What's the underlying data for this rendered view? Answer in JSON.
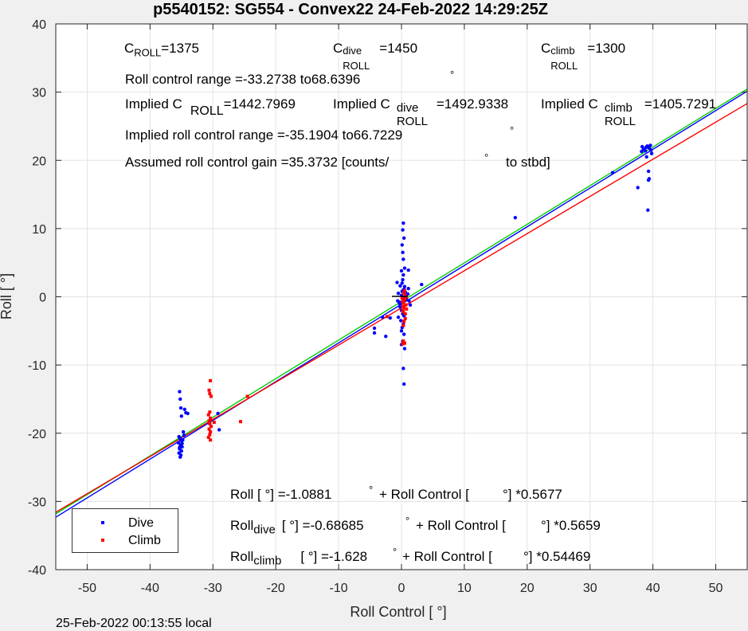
{
  "chart_data": {
    "type": "scatter",
    "title": "p5540152: SG554 - Convex22 24-Feb-2022 14:29:25Z",
    "xlabel": "Roll Control [   °]",
    "ylabel": "Roll [  °]",
    "xlim": [
      -55,
      55
    ],
    "ylim": [
      -40,
      40
    ],
    "xticks": [
      -50,
      -40,
      -30,
      -20,
      -10,
      0,
      10,
      20,
      30,
      40,
      50
    ],
    "yticks": [
      -40,
      -30,
      -20,
      -10,
      0,
      10,
      20,
      30,
      40
    ],
    "grid": true,
    "legend": {
      "placement": "bottom-left",
      "entries": [
        {
          "label": "Dive",
          "color": "#0000ff"
        },
        {
          "label": "Climb",
          "color": "#ff0000"
        }
      ]
    },
    "series": [
      {
        "name": "Dive",
        "color": "#0000ff",
        "points": [
          [
            -35.3,
            -13.9
          ],
          [
            -35.2,
            -15.0
          ],
          [
            -35.1,
            -16.3
          ],
          [
            -35.0,
            -17.5
          ],
          [
            -35.4,
            -20.5
          ],
          [
            -35.2,
            -20.8
          ],
          [
            -35.0,
            -21.1
          ],
          [
            -35.5,
            -21.4
          ],
          [
            -35.1,
            -21.7
          ],
          [
            -34.9,
            -22.0
          ],
          [
            -35.3,
            -22.3
          ],
          [
            -35.0,
            -22.6
          ],
          [
            -35.4,
            -22.9
          ],
          [
            -35.1,
            -23.2
          ],
          [
            -35.2,
            -23.5
          ],
          [
            -34.8,
            -21.0
          ],
          [
            -34.6,
            -20.3
          ],
          [
            -34.7,
            -19.8
          ],
          [
            -34.5,
            -16.5
          ],
          [
            -34.0,
            -17.1
          ],
          [
            -34.3,
            -17.0
          ],
          [
            -35.3,
            -22.1
          ],
          [
            -34.9,
            -21.5
          ],
          [
            -35.2,
            -21.9
          ],
          [
            -29.2,
            -17.1
          ],
          [
            -29.0,
            -19.5
          ],
          [
            -4.3,
            -4.6
          ],
          [
            -4.3,
            -5.3
          ],
          [
            -2.5,
            -5.8
          ],
          [
            -3.0,
            -3.0
          ],
          [
            -1.8,
            -3.1
          ],
          [
            -0.6,
            -0.6
          ],
          [
            -0.3,
            -1.0
          ],
          [
            -0.2,
            -1.5
          ],
          [
            0.0,
            -2.0
          ],
          [
            0.2,
            -2.5
          ],
          [
            -0.5,
            -3.0
          ],
          [
            -0.1,
            -3.5
          ],
          [
            0.3,
            -4.0
          ],
          [
            0.1,
            -4.5
          ],
          [
            0.0,
            -5.0
          ],
          [
            0.4,
            -5.5
          ],
          [
            0.2,
            -6.5
          ],
          [
            0.0,
            -7.0
          ],
          [
            0.5,
            -7.6
          ],
          [
            0.3,
            -10.5
          ],
          [
            0.4,
            -12.8
          ],
          [
            0.3,
            10.8
          ],
          [
            0.2,
            9.8
          ],
          [
            0.4,
            8.6
          ],
          [
            0.1,
            7.6
          ],
          [
            0.2,
            6.5
          ],
          [
            0.3,
            5.5
          ],
          [
            0.5,
            4.2
          ],
          [
            0.0,
            3.8
          ],
          [
            0.3,
            3.2
          ],
          [
            1.1,
            3.9
          ],
          [
            0.2,
            2.5
          ],
          [
            0.1,
            2.0
          ],
          [
            -0.2,
            1.6
          ],
          [
            0.5,
            1.5
          ],
          [
            0.3,
            1.0
          ],
          [
            0.6,
            0.7
          ],
          [
            -0.5,
            0.5
          ],
          [
            0.0,
            0.2
          ],
          [
            0.2,
            -0.2
          ],
          [
            0.8,
            -0.3
          ],
          [
            1.0,
            0.4
          ],
          [
            0.4,
            1.1
          ],
          [
            -0.3,
            -0.8
          ],
          [
            1.4,
            -1.2
          ],
          [
            0.1,
            0.8
          ],
          [
            3.2,
            1.8
          ],
          [
            1.1,
            1.2
          ],
          [
            -0.7,
            2.1
          ],
          [
            0.4,
            -2.8
          ],
          [
            1.2,
            -0.6
          ],
          [
            18.1,
            11.6
          ],
          [
            33.6,
            18.2
          ],
          [
            37.6,
            16.0
          ],
          [
            39.2,
            12.7
          ],
          [
            39.3,
            17.1
          ],
          [
            39.4,
            17.3
          ],
          [
            39.3,
            18.4
          ],
          [
            38.2,
            21.3
          ],
          [
            38.5,
            21.6
          ],
          [
            38.9,
            21.9
          ],
          [
            39.1,
            22.1
          ],
          [
            39.4,
            21.8
          ],
          [
            39.7,
            21.5
          ],
          [
            38.3,
            22.0
          ],
          [
            38.8,
            21.4
          ],
          [
            39.6,
            22.2
          ],
          [
            39.0,
            20.5
          ],
          [
            39.8,
            21.0
          ]
        ]
      },
      {
        "name": "Climb",
        "color": "#ff0000",
        "points": [
          [
            -30.4,
            -12.3
          ],
          [
            -30.6,
            -13.7
          ],
          [
            -30.5,
            -14.2
          ],
          [
            -30.3,
            -14.6
          ],
          [
            -30.5,
            -16.9
          ],
          [
            -30.7,
            -17.3
          ],
          [
            -30.4,
            -17.8
          ],
          [
            -30.6,
            -18.2
          ],
          [
            -30.5,
            -18.6
          ],
          [
            -30.3,
            -19.0
          ],
          [
            -30.6,
            -19.4
          ],
          [
            -30.4,
            -19.8
          ],
          [
            -30.5,
            -20.2
          ],
          [
            -30.7,
            -20.6
          ],
          [
            -30.4,
            -21.0
          ],
          [
            -29.8,
            -18.4
          ],
          [
            -25.6,
            -18.3
          ],
          [
            -24.5,
            -14.6
          ],
          [
            -2.3,
            -2.9
          ],
          [
            0.3,
            -6.5
          ],
          [
            0.5,
            -6.8
          ],
          [
            0.2,
            -6.9
          ],
          [
            0.6,
            -2.5
          ],
          [
            0.2,
            -2.0
          ],
          [
            0.4,
            -1.6
          ],
          [
            0.7,
            -1.2
          ],
          [
            0.3,
            -0.9
          ],
          [
            0.5,
            -0.5
          ],
          [
            0.1,
            -0.2
          ],
          [
            0.6,
            0.2
          ],
          [
            0.4,
            0.5
          ],
          [
            0.2,
            -1.4
          ],
          [
            0.8,
            -1.8
          ],
          [
            0.3,
            -2.2
          ],
          [
            0.6,
            -3.2
          ],
          [
            0.4,
            -3.6
          ],
          [
            0.2,
            -0.7
          ],
          [
            0.7,
            -0.1
          ],
          [
            0.5,
            0.9
          ],
          [
            0.3,
            -4.2
          ]
        ]
      }
    ],
    "fits": [
      {
        "name": "All",
        "color": "#0000ff",
        "intercept": -1.0881,
        "slope": 0.5677
      },
      {
        "name": "Dive",
        "color": "#00d000",
        "intercept": -0.68685,
        "slope": 0.5659
      },
      {
        "name": "Climb",
        "color": "#ff0000",
        "intercept": -1.628,
        "slope": 0.54469
      }
    ]
  },
  "annotations": {
    "c_roll": {
      "base": "C",
      "sub": "ROLL",
      "value": "=1375"
    },
    "c_roll_dive": {
      "base": "C",
      "sup": "dive",
      "sub": "ROLL",
      "value": "=1450"
    },
    "c_roll_climb": {
      "base": "C",
      "sup": "climb",
      "sub": "ROLL",
      "value": "=1300"
    },
    "range": {
      "text": "Roll control range =-33.2738 to68.6396",
      "deg": "°"
    },
    "implied_roll": {
      "prefix": "Implied C",
      "sub": "ROLL",
      "value": "=1442.7969"
    },
    "implied_dive": {
      "prefix": "Implied C",
      "sup": "dive",
      "sub": "ROLL",
      "value": "=1492.9338"
    },
    "implied_climb": {
      "prefix": "Implied C",
      "sup": "climb",
      "sub": "ROLL",
      "value": "=1405.7291"
    },
    "implied_range": {
      "text": "Implied roll control range =-35.1904 to66.7229",
      "deg": "°"
    },
    "gain": {
      "text": "Assumed roll control gain =35.3732 [counts/",
      "deg": "°",
      "suffix": "to stbd]"
    },
    "eq_all": {
      "a": "Roll [  °] =-1.0881",
      "b": "°",
      "c": "+ Roll Control [",
      "d": "°] *0.5677"
    },
    "eq_dive": {
      "pre": "Roll",
      "sub": "dive",
      "a": "[  °] =-0.68685",
      "b": "°",
      "c": "+ Roll Control [",
      "d": "°] *0.5659"
    },
    "eq_climb": {
      "pre": "Roll",
      "sub": "climb",
      "a": "[  °] =-1.628",
      "b": "°",
      "c": "+ Roll Control [",
      "d": "°] *0.54469"
    }
  },
  "footer": "25-Feb-2022 00:13:55 local"
}
